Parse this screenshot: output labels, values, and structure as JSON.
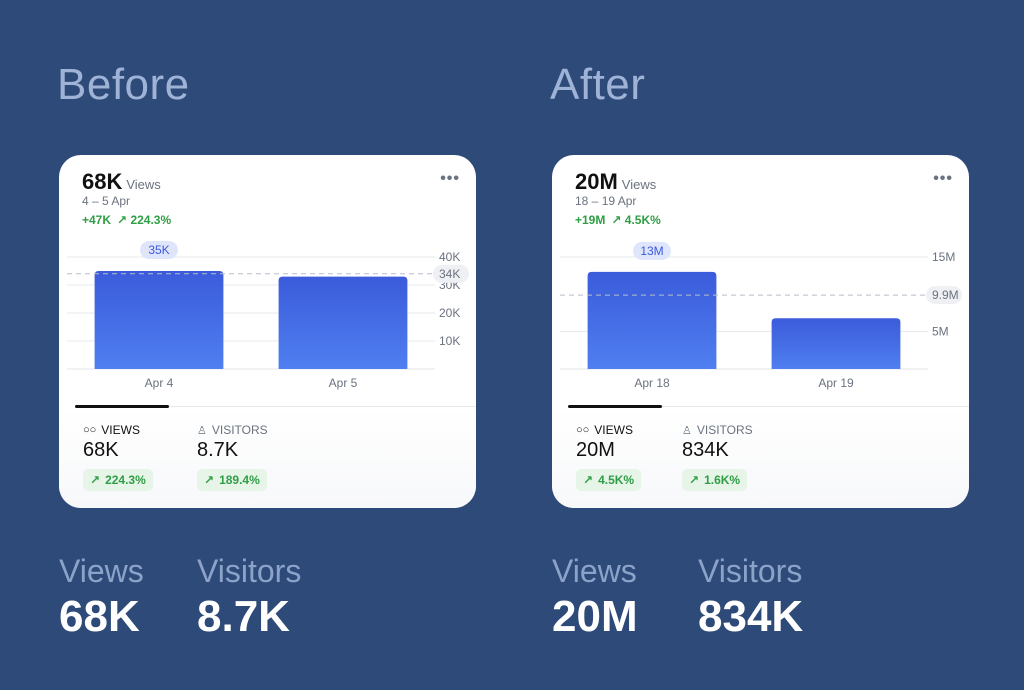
{
  "panels": [
    {
      "heading": "Before",
      "card": {
        "big_value": "68K",
        "big_unit": "Views",
        "range": "4 – 5 Apr",
        "change_abs": "+47K",
        "change_pct": "224.3%",
        "more": "•••",
        "tab_views_label": "VIEWS",
        "tab_views_value": "68K",
        "tab_views_pill": "224.3%",
        "tab_visitors_label": "VISITORS",
        "tab_visitors_value": "8.7K",
        "tab_visitors_pill": "189.4%"
      },
      "bottom": {
        "views_label": "Views",
        "views_value": "68K",
        "visitors_label": "Visitors",
        "visitors_value": "8.7K"
      }
    },
    {
      "heading": "After",
      "card": {
        "big_value": "20M",
        "big_unit": "Views",
        "range": "18 – 19 Apr",
        "change_abs": "+19M",
        "change_pct": "4.5K%",
        "more": "•••",
        "tab_views_label": "VIEWS",
        "tab_views_value": "20M",
        "tab_views_pill": "4.5K%",
        "tab_visitors_label": "VISITORS",
        "tab_visitors_value": "834K",
        "tab_visitors_pill": "1.6K%"
      },
      "bottom": {
        "views_label": "Views",
        "views_value": "20M",
        "visitors_label": "Visitors",
        "visitors_value": "834K"
      }
    }
  ],
  "chart_data": [
    {
      "type": "bar",
      "categories": [
        "Apr 4",
        "Apr 5"
      ],
      "values": [
        35,
        33
      ],
      "value_unit": "K",
      "yticks": [
        10,
        20,
        30,
        40
      ],
      "ytick_labels": [
        "10K",
        "20K",
        "30K",
        "40K"
      ],
      "ylim": [
        0,
        40
      ],
      "average": 34,
      "average_label": "34K",
      "highlight_label": "35K",
      "highlight_index": 0
    },
    {
      "type": "bar",
      "categories": [
        "Apr 18",
        "Apr 19"
      ],
      "values": [
        13,
        6.8
      ],
      "value_unit": "M",
      "yticks": [
        5,
        15
      ],
      "ytick_labels": [
        "5M",
        "15M"
      ],
      "ylim": [
        0,
        15
      ],
      "average": 9.9,
      "average_label": "9.9M",
      "highlight_label": "13M",
      "highlight_index": 0
    }
  ],
  "colors": {
    "background": "#2e4a79",
    "bar_top": "#3b5bdb",
    "bar_bottom": "#4f7ff0",
    "positive": "#2f9e44",
    "highlight_pill": "#dfe6fb"
  },
  "icons": [
    "glasses-icon",
    "person-icon",
    "arrow-up-right-icon",
    "more-icon"
  ]
}
